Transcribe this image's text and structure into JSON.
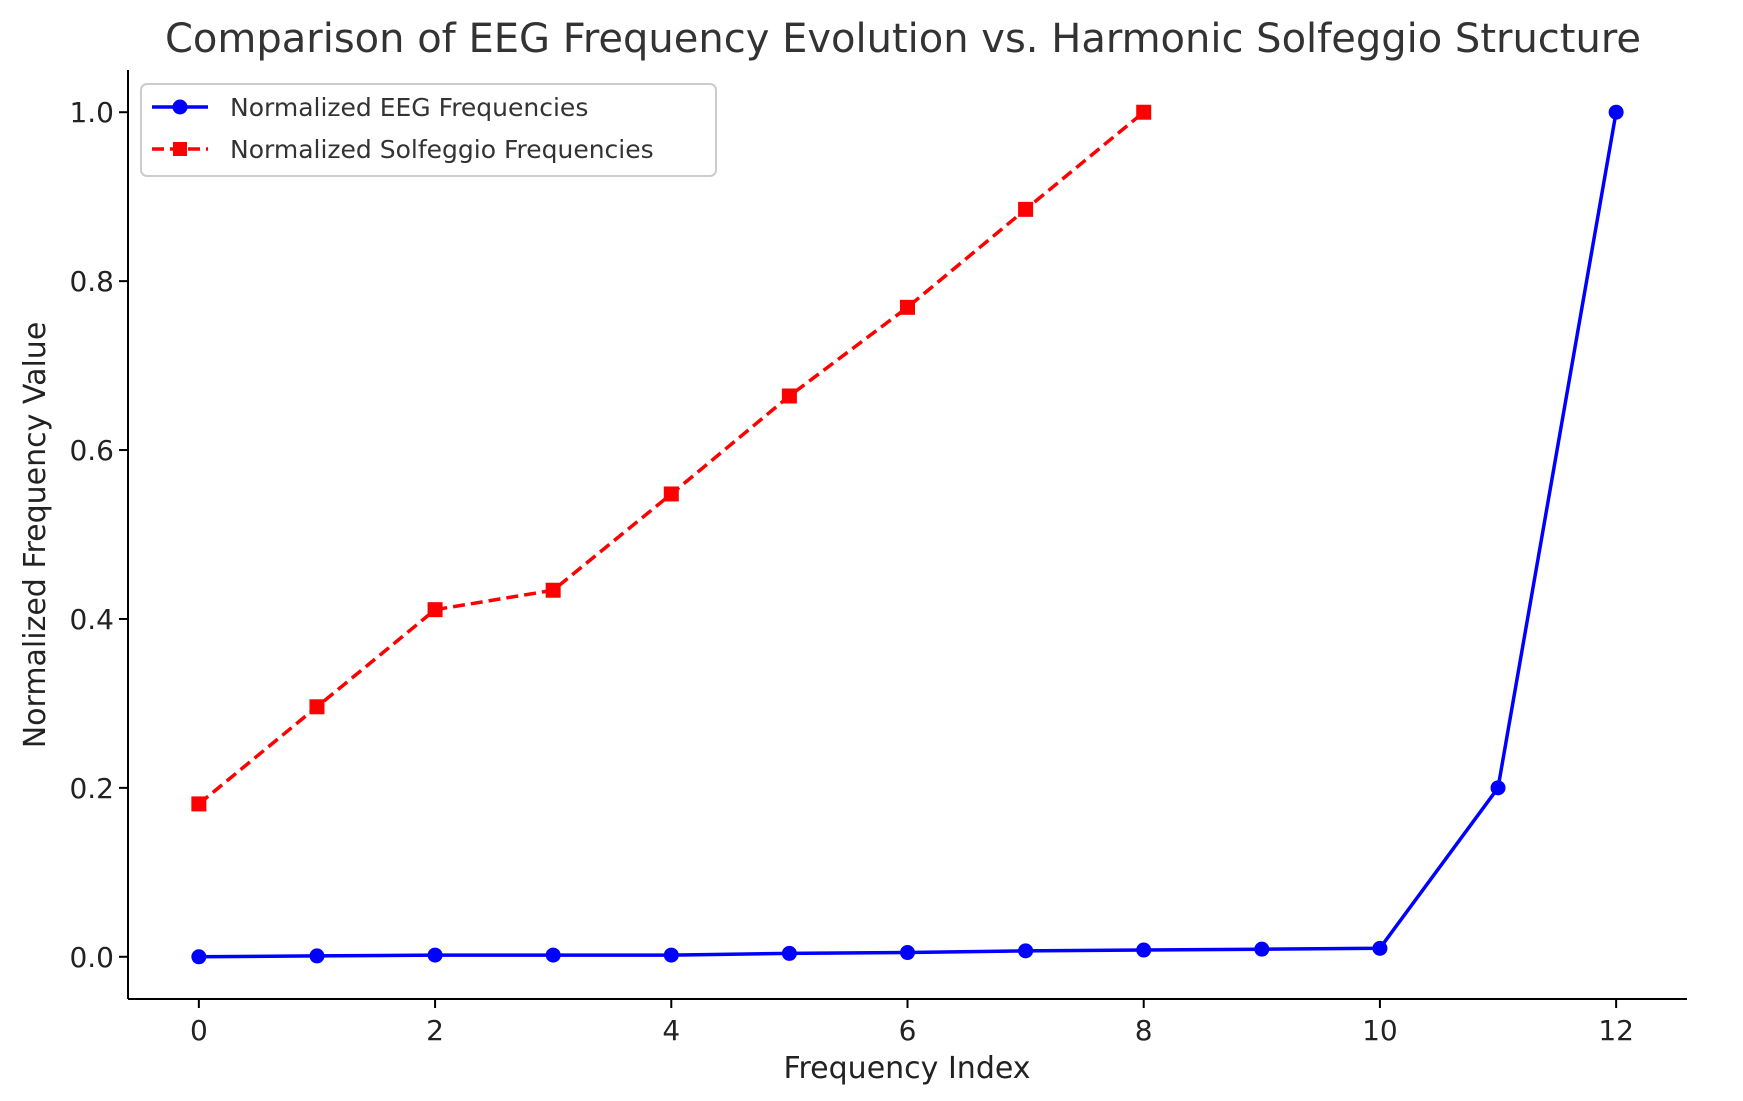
{
  "chart_data": {
    "type": "line",
    "title": "Comparison of EEG Frequency Evolution vs. Harmonic Solfeggio Structure",
    "xlabel": "Frequency Index",
    "ylabel": "Normalized Frequency Value",
    "xlim": [
      -0.6,
      12.6
    ],
    "ylim": [
      -0.05,
      1.05
    ],
    "xticks": [
      0,
      2,
      4,
      6,
      8,
      10,
      12
    ],
    "xtick_labels": [
      "0",
      "2",
      "4",
      "6",
      "8",
      "10",
      "12"
    ],
    "yticks": [
      0.0,
      0.2,
      0.4,
      0.6,
      0.8,
      1.0
    ],
    "ytick_labels": [
      "0.0",
      "0.2",
      "0.4",
      "0.6",
      "0.8",
      "1.0"
    ],
    "grid": false,
    "legend_position": "top-left",
    "series": [
      {
        "name": "Normalized EEG Frequencies",
        "color": "#0000ff",
        "line_style": "solid",
        "marker": "circle",
        "x": [
          0,
          1,
          2,
          3,
          4,
          5,
          6,
          7,
          8,
          9,
          10,
          11,
          12
        ],
        "y": [
          0.0,
          0.001,
          0.002,
          0.002,
          0.002,
          0.004,
          0.005,
          0.007,
          0.008,
          0.009,
          0.01,
          0.2,
          1.0
        ]
      },
      {
        "name": "Normalized Solfeggio Frequencies",
        "color": "#ff0000",
        "line_style": "dashed",
        "marker": "square",
        "x": [
          0,
          1,
          2,
          3,
          4,
          5,
          6,
          7,
          8
        ],
        "y": [
          0.181,
          0.296,
          0.411,
          0.434,
          0.548,
          0.664,
          0.769,
          0.885,
          1.0
        ]
      }
    ]
  }
}
